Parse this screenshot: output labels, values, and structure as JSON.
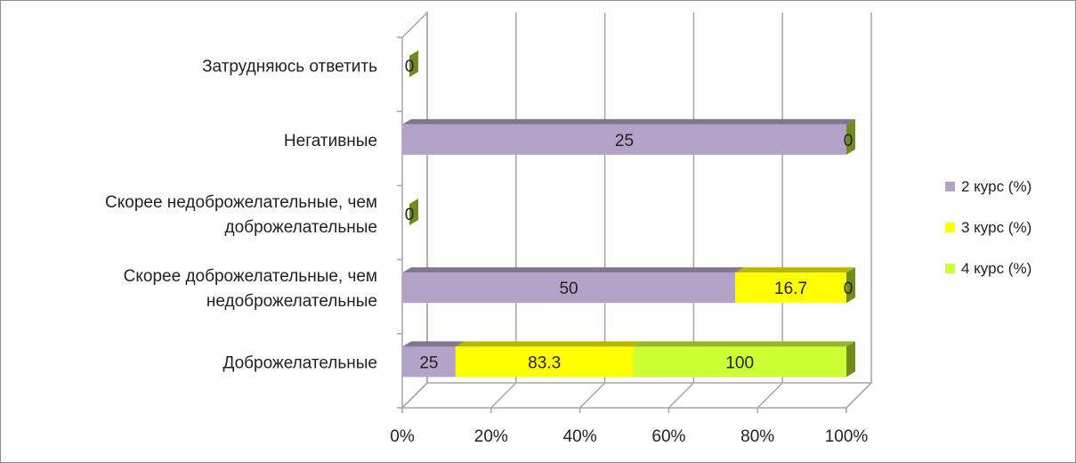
{
  "chart_data": {
    "type": "bar",
    "orientation": "horizontal",
    "stacked": "percent",
    "categories": [
      "Доброжелательные",
      "Скорее доброжелательные, чем недоброжелательные",
      "Скорее недоброжелательные, чем доброжелательные",
      "Негативные",
      "Затрудняюсь ответить"
    ],
    "category_lines": [
      [
        "Доброжелательные"
      ],
      [
        "Скорее доброжелательные, чем",
        "недоброжелательные"
      ],
      [
        "Скорее недоброжелательные, чем",
        "доброжелательные"
      ],
      [
        "Негативные"
      ],
      [
        "Затрудняюсь ответить"
      ]
    ],
    "series": [
      {
        "name": "2 курс (%)",
        "values": [
          25,
          50,
          0,
          25,
          0
        ],
        "color": "#b3a2c7"
      },
      {
        "name": "3 курс (%)",
        "values": [
          83.3,
          16.7,
          0,
          0,
          0
        ],
        "color": "#ffff00"
      },
      {
        "name": "4 курс (%)",
        "values": [
          100,
          0,
          0,
          0,
          0
        ],
        "color": "#ccff33"
      }
    ],
    "data_labels": [
      [
        "25",
        "50",
        "",
        "25",
        ""
      ],
      [
        "83.3",
        "16.7",
        "",
        "",
        ""
      ],
      [
        "100",
        "0",
        "0",
        "0",
        "0"
      ]
    ],
    "x_ticks": [
      "0%",
      "20%",
      "40%",
      "60%",
      "80%",
      "100%"
    ],
    "xlim": [
      0,
      100
    ],
    "grid": true,
    "legend_position": "right",
    "style": "3d"
  }
}
